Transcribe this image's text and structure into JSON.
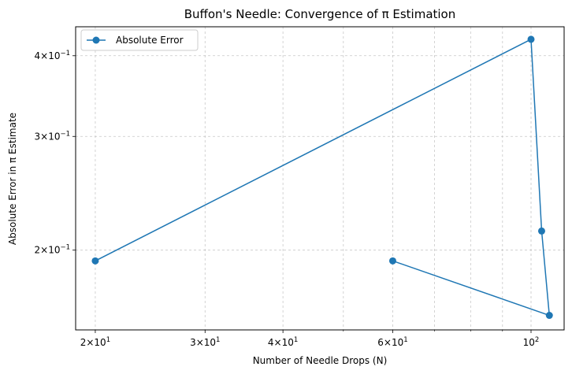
{
  "chart_data": {
    "type": "line",
    "title": "Buffon's Needle: Convergence of π Estimation",
    "xlabel": "Number of Needle Drops (N)",
    "ylabel": "Absolute Error in π Estimate",
    "xscale": "log",
    "yscale": "log",
    "xlim": [
      18.6,
      113
    ],
    "ylim": [
      0.1505,
      0.4435
    ],
    "grid": true,
    "legend_position": "top-left",
    "color": "#1f77b4",
    "series": [
      {
        "name": "Absolute Error",
        "x": [
          20,
          100,
          104,
          107,
          60
        ],
        "y": [
          0.1925,
          0.4241,
          0.2141,
          0.1585,
          0.1925
        ]
      }
    ],
    "xticks": [
      {
        "value": 20,
        "base": "2×10",
        "exp": "1"
      },
      {
        "value": 30,
        "base": "3×10",
        "exp": "1"
      },
      {
        "value": 40,
        "base": "4×10",
        "exp": "1"
      },
      {
        "value": 60,
        "base": "6×10",
        "exp": "1"
      },
      {
        "value": 100,
        "base": "10",
        "exp": "2"
      }
    ],
    "xminor": [
      50,
      70,
      80,
      90
    ],
    "yticks": [
      {
        "value": 0.2,
        "base": "2×10",
        "exp": "−1"
      },
      {
        "value": 0.3,
        "base": "3×10",
        "exp": "−1"
      },
      {
        "value": 0.4,
        "base": "4×10",
        "exp": "−1"
      }
    ]
  }
}
